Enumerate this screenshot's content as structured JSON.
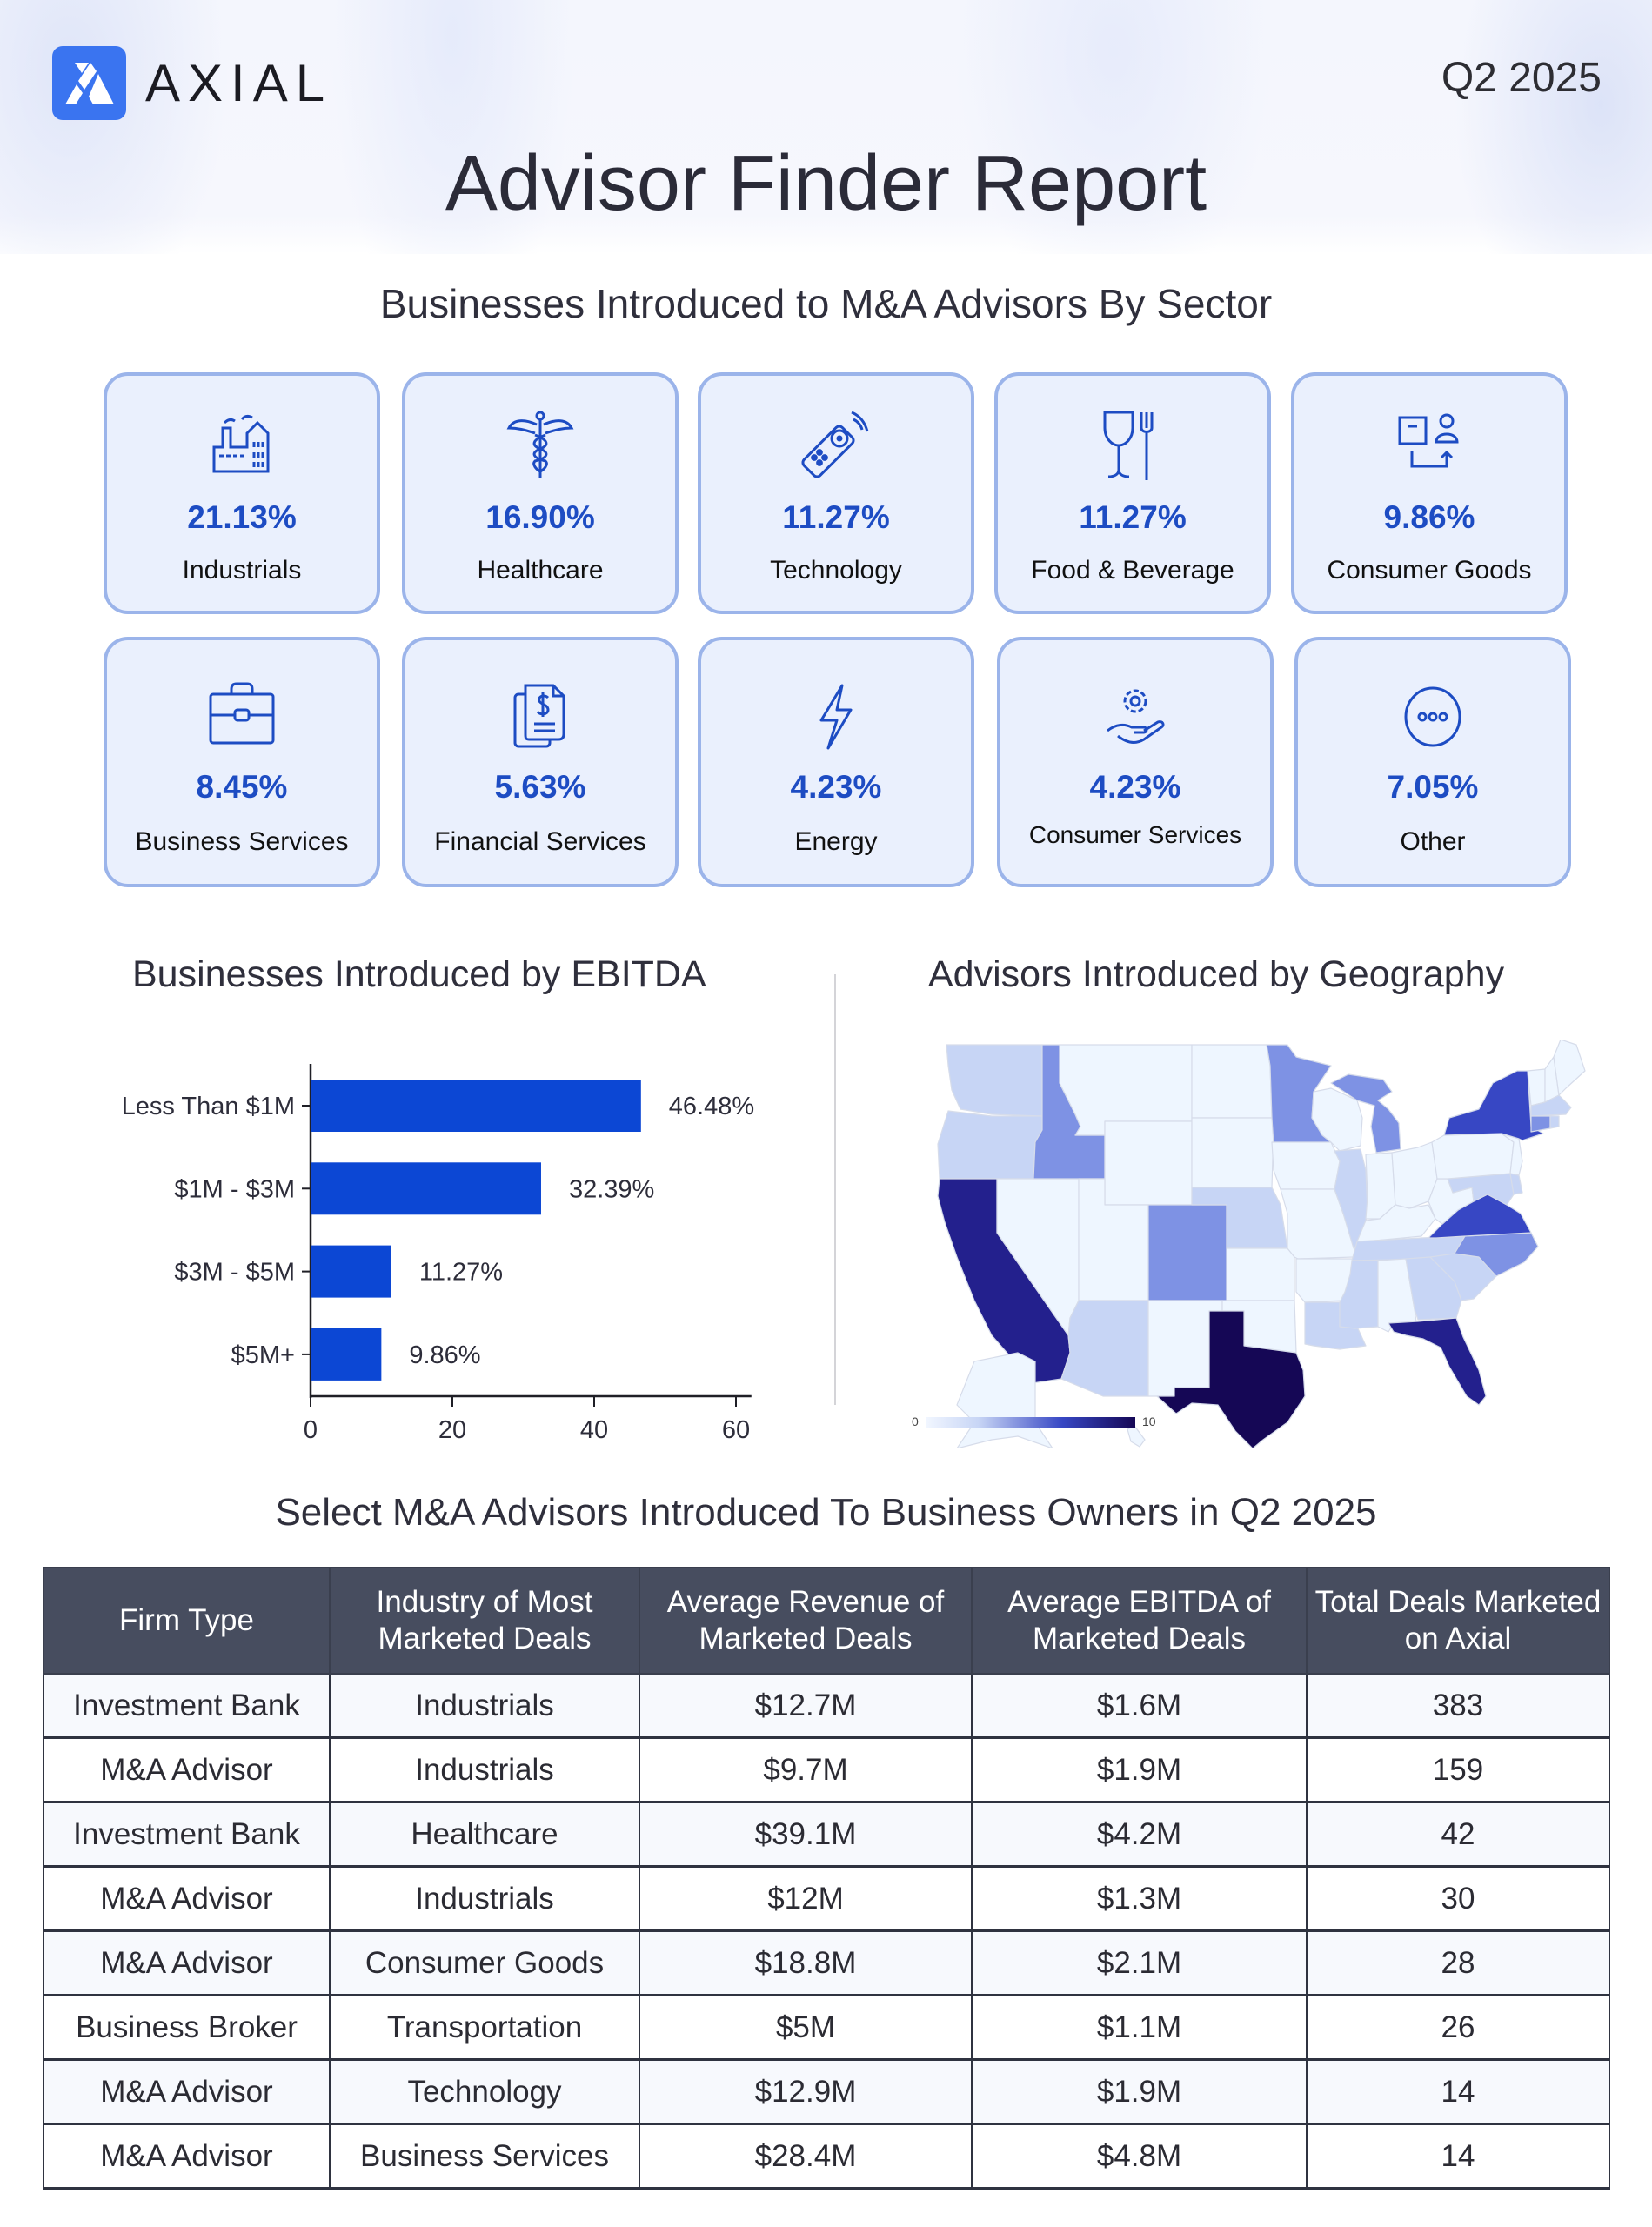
{
  "header": {
    "brand": "AXIAL",
    "period": "Q2 2025",
    "title": "Advisor Finder Report",
    "brand_color": "#3a74f0"
  },
  "sectors": {
    "title": "Businesses Introduced to M&A Advisors By Sector",
    "accent_color": "#1d4cc3",
    "items": [
      {
        "label": "Industrials",
        "value": "21.13%",
        "icon": "factory-icon"
      },
      {
        "label": "Healthcare",
        "value": "16.90%",
        "icon": "caduceus-icon"
      },
      {
        "label": "Technology",
        "value": "11.27%",
        "icon": "remote-control-icon"
      },
      {
        "label": "Food & Beverage",
        "value": "11.27%",
        "icon": "glass-fork-icon"
      },
      {
        "label": "Consumer Goods",
        "value": "9.86%",
        "icon": "box-person-icon"
      },
      {
        "label": "Business Services",
        "value": "8.45%",
        "icon": "briefcase-icon"
      },
      {
        "label": "Financial Services",
        "value": "5.63%",
        "icon": "dollar-document-icon"
      },
      {
        "label": "Energy",
        "value": "4.23%",
        "icon": "lightning-icon"
      },
      {
        "label": "Consumer Services",
        "value": "4.23%",
        "icon": "gear-hand-icon"
      },
      {
        "label": "Other",
        "value": "7.05%",
        "icon": "more-dots-icon"
      }
    ]
  },
  "chart_data": [
    {
      "type": "bar",
      "orientation": "horizontal",
      "title": "Businesses Introduced by EBITDA",
      "categories": [
        "Less Than $1M",
        "$1M - $3M",
        "$3M - $5M",
        "$5M+"
      ],
      "values": [
        46.48,
        32.39,
        11.27,
        9.86
      ],
      "value_labels": [
        "46.48%",
        "32.39%",
        "11.27%",
        "9.86%"
      ],
      "xlim": [
        0,
        65
      ],
      "xticks": [
        0,
        20,
        40,
        60
      ],
      "xtick_labels": [
        "0",
        "20",
        "40",
        "60"
      ],
      "xlabel": "",
      "ylabel": "",
      "grid": false,
      "bar_color": "#0c47d4"
    },
    {
      "type": "heatmap",
      "subtype": "choropleth-us-states",
      "title": "Advisors Introduced by Geography",
      "colorscale": {
        "min": 0,
        "max": 10,
        "min_label": "0",
        "max_label": "10",
        "colors": [
          "#eef6ff",
          "#c7d5f5",
          "#7e92e4",
          "#3747c4",
          "#23208d",
          "#150755"
        ]
      },
      "values": {
        "WA": 1,
        "OR": 1,
        "CA": 8,
        "NV": 0,
        "ID": 3,
        "MT": 0,
        "WY": 0,
        "UT": 0,
        "AZ": 1,
        "CO": 3,
        "NM": 0,
        "ND": 0,
        "SD": 0,
        "NE": 1,
        "KS": 0,
        "OK": 0,
        "TX": 10,
        "MN": 3,
        "IA": 0,
        "MO": 0,
        "AR": 0,
        "LA": 1,
        "WI": 0,
        "IL": 1,
        "MI": 3,
        "IN": 0,
        "OH": 0,
        "KY": 0,
        "TN": 1,
        "MS": 1,
        "AL": 0,
        "GA": 1,
        "FL": 8,
        "SC": 1,
        "NC": 3,
        "VA": 6,
        "WV": 0,
        "MD": 1,
        "DE": 1,
        "PA": 0,
        "NJ": 0,
        "NY": 6,
        "CT": 3,
        "RI": 1,
        "MA": 1,
        "VT": 0,
        "NH": 0,
        "ME": 0,
        "AK": 0,
        "HI": 0
      }
    }
  ],
  "table": {
    "title": "Select M&A Advisors Introduced To Business Owners in Q2 2025",
    "header_color": "#474d5f",
    "columns": [
      "Firm Type",
      "Industry of Most Marketed Deals",
      "Average Revenue of Marketed Deals",
      "Average EBITDA of Marketed Deals",
      "Total Deals Marketed on Axial"
    ],
    "rows": [
      [
        "Investment Bank",
        "Industrials",
        "$12.7M",
        "$1.6M",
        "383"
      ],
      [
        "M&A Advisor",
        "Industrials",
        "$9.7M",
        "$1.9M",
        "159"
      ],
      [
        "Investment Bank",
        "Healthcare",
        "$39.1M",
        "$4.2M",
        "42"
      ],
      [
        "M&A Advisor",
        "Industrials",
        "$12M",
        "$1.3M",
        "30"
      ],
      [
        "M&A Advisor",
        "Consumer Goods",
        "$18.8M",
        "$2.1M",
        "28"
      ],
      [
        "Business Broker",
        "Transportation",
        "$5M",
        "$1.1M",
        "26"
      ],
      [
        "M&A Advisor",
        "Technology",
        "$12.9M",
        "$1.9M",
        "14"
      ],
      [
        "M&A Advisor",
        "Business Services",
        "$28.4M",
        "$4.8M",
        "14"
      ]
    ]
  }
}
